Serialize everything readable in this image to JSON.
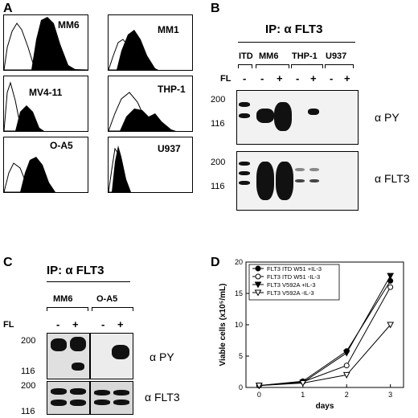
{
  "panels": {
    "A": {
      "letter": "A",
      "cells": [
        "MM6",
        "MM1",
        "MV4-11",
        "THP-1",
        "O-A5",
        "U937"
      ]
    },
    "B": {
      "letter": "B",
      "ip": "IP: α FLT3",
      "lanes": [
        "ITD",
        "MM6",
        "THP-1",
        "U937"
      ],
      "fl_label": "FL",
      "signs": [
        "-",
        "-",
        "+",
        "-",
        "+",
        "-",
        "+"
      ],
      "mw_top": [
        "200",
        "116"
      ],
      "mw_bottom": [
        "200",
        "116"
      ],
      "ab_top": "α PY",
      "ab_bottom": "α FLT3"
    },
    "C": {
      "letter": "C",
      "ip": "IP: α FLT3",
      "lanes": [
        "MM6",
        "O-A5"
      ],
      "fl_label": "FL",
      "signs": [
        "-",
        "+",
        "-",
        "+"
      ],
      "mw_top": [
        "200",
        "116"
      ],
      "mw_bottom": [
        "200",
        "116"
      ],
      "ab_top": "α PY",
      "ab_bottom": "α FLT3"
    },
    "D": {
      "letter": "D"
    }
  },
  "chart_data": {
    "type": "line",
    "xlabel": "days",
    "ylabel": "Viable cells (x10⁵/mL)",
    "x": [
      0,
      1,
      2,
      3
    ],
    "xlim": [
      -0.3,
      3.3
    ],
    "ylim": [
      0,
      20
    ],
    "yticks": [
      0,
      5,
      10,
      15,
      20
    ],
    "series": [
      {
        "name": "FLT3 ITD W51 +IL-3",
        "marker": "filled-circle",
        "values": [
          0.3,
          1.0,
          5.8,
          17.0
        ]
      },
      {
        "name": "FLT3 ITD W51 -IL-3",
        "marker": "open-circle",
        "values": [
          0.3,
          0.9,
          3.5,
          16.0
        ]
      },
      {
        "name": "FLT3 V592A +IL-3",
        "marker": "filled-triangle",
        "values": [
          0.3,
          0.8,
          5.5,
          17.8
        ]
      },
      {
        "name": "FLT3 V592A -IL-3",
        "marker": "open-triangle",
        "values": [
          0.3,
          0.7,
          2.0,
          10.0
        ]
      }
    ]
  }
}
